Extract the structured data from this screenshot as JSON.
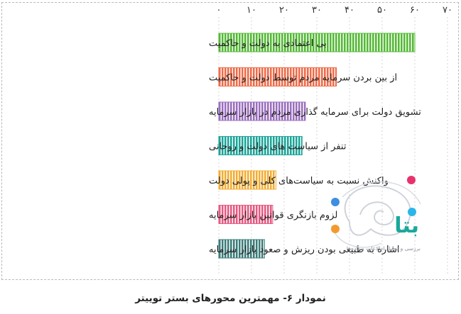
{
  "chart_data": {
    "type": "bar",
    "orientation": "horizontal",
    "x_axis_position": "top",
    "x_direction": "left-to-right",
    "xlim": [
      0,
      70
    ],
    "xticks": [
      0,
      10,
      20,
      30,
      40,
      50,
      60,
      70
    ],
    "xtick_labels": [
      "۰",
      "۱۰",
      "۲۰",
      "۳۰",
      "۴۰",
      "۵۰",
      "۶۰",
      "۷۰"
    ],
    "grid": "vertical dotted",
    "legend": "none",
    "categories": [
      "بی اعتمادی به دولت و حاکمیت",
      "از بین بردن سرمایه مردم توسط دولت و حاکمیت",
      "تشویق دولت برای سرمایه گذاری مردم در بازار سرمایه",
      "تنفر از سیاست های دولت و روحانی",
      "واکنش نسبت به سیاست‌های کلی و پولی دولت",
      "لزوم بازنگری قوانین بازار سرمایه",
      "اشاره به طبیعی بودن ریزش و صعود بازار سرمایه"
    ],
    "values": [
      60,
      36,
      26.5,
      25.5,
      17.5,
      16.5,
      14
    ],
    "colors": [
      "#55b937",
      "#ef6c4a",
      "#9b6fbe",
      "#1ea59a",
      "#f2ad34",
      "#e55b83",
      "#3d7d7a"
    ],
    "title": "نمودار ۶- مهمترین محورهای بستر توییتر"
  },
  "watermark": {
    "brand": "بتا",
    "tagline": "بررسی و تحلیل اطلاعات و داده‌ها"
  }
}
